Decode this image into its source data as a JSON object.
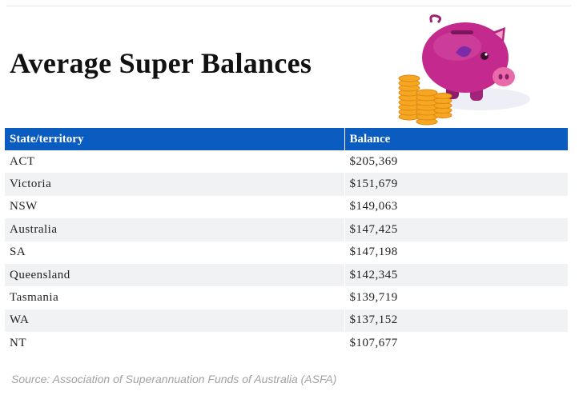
{
  "title": "Average Super Balances",
  "table": {
    "headers": [
      "State/territory",
      "Balance"
    ],
    "rows": [
      {
        "state": "ACT",
        "balance": "$205,369"
      },
      {
        "state": "Victoria",
        "balance": "$151,679"
      },
      {
        "state": "NSW",
        "balance": "$149,063"
      },
      {
        "state": "Australia",
        "balance": "$147,425"
      },
      {
        "state": "SA",
        "balance": "$147,198"
      },
      {
        "state": "Queensland",
        "balance": "$142,345"
      },
      {
        "state": "Tasmania",
        "balance": "$139,719"
      },
      {
        "state": "WA",
        "balance": "$137,152"
      },
      {
        "state": "NT",
        "balance": "$107,677"
      }
    ]
  },
  "source": "Source: Association of Superannuation Funds of Australia (ASFA)",
  "colors": {
    "header_bg": "#0b5cc0",
    "stripe": "#f0f2f4",
    "piggy": "#c42a8e",
    "coins": "#f5a623"
  },
  "icons": {
    "illustration": "piggy-bank-with-coins-icon"
  }
}
